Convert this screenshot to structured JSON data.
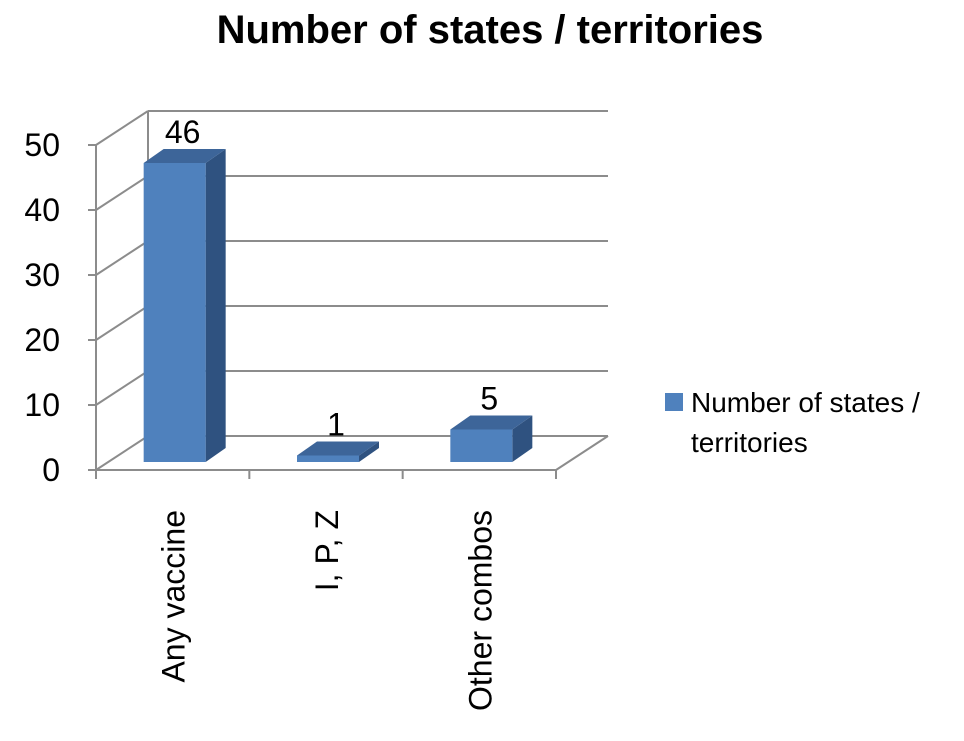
{
  "chart_data": {
    "type": "bar",
    "title": "Number of states / territories",
    "categories": [
      "Any vaccine",
      "I, P, Z",
      "Other combos"
    ],
    "series": [
      {
        "name": "Number of states / territories",
        "values": [
          46,
          1,
          5
        ]
      }
    ],
    "data_labels": [
      "46",
      "1",
      "5"
    ],
    "ylim": [
      0,
      50
    ],
    "yticks": [
      0,
      10,
      20,
      30,
      40,
      50
    ],
    "ytick_labels": [
      "0",
      "10",
      "20",
      "30",
      "40",
      "50"
    ],
    "xlabel": "",
    "ylabel": "",
    "grid": true,
    "three_d": true,
    "legend": {
      "position": "right",
      "lines": [
        "Number of states /",
        "territories"
      ]
    },
    "colors": {
      "bar_front": "#4F81BD",
      "bar_side": "#2F5280",
      "bar_top": "#3D6599",
      "grid": "#8C8C8C"
    }
  }
}
